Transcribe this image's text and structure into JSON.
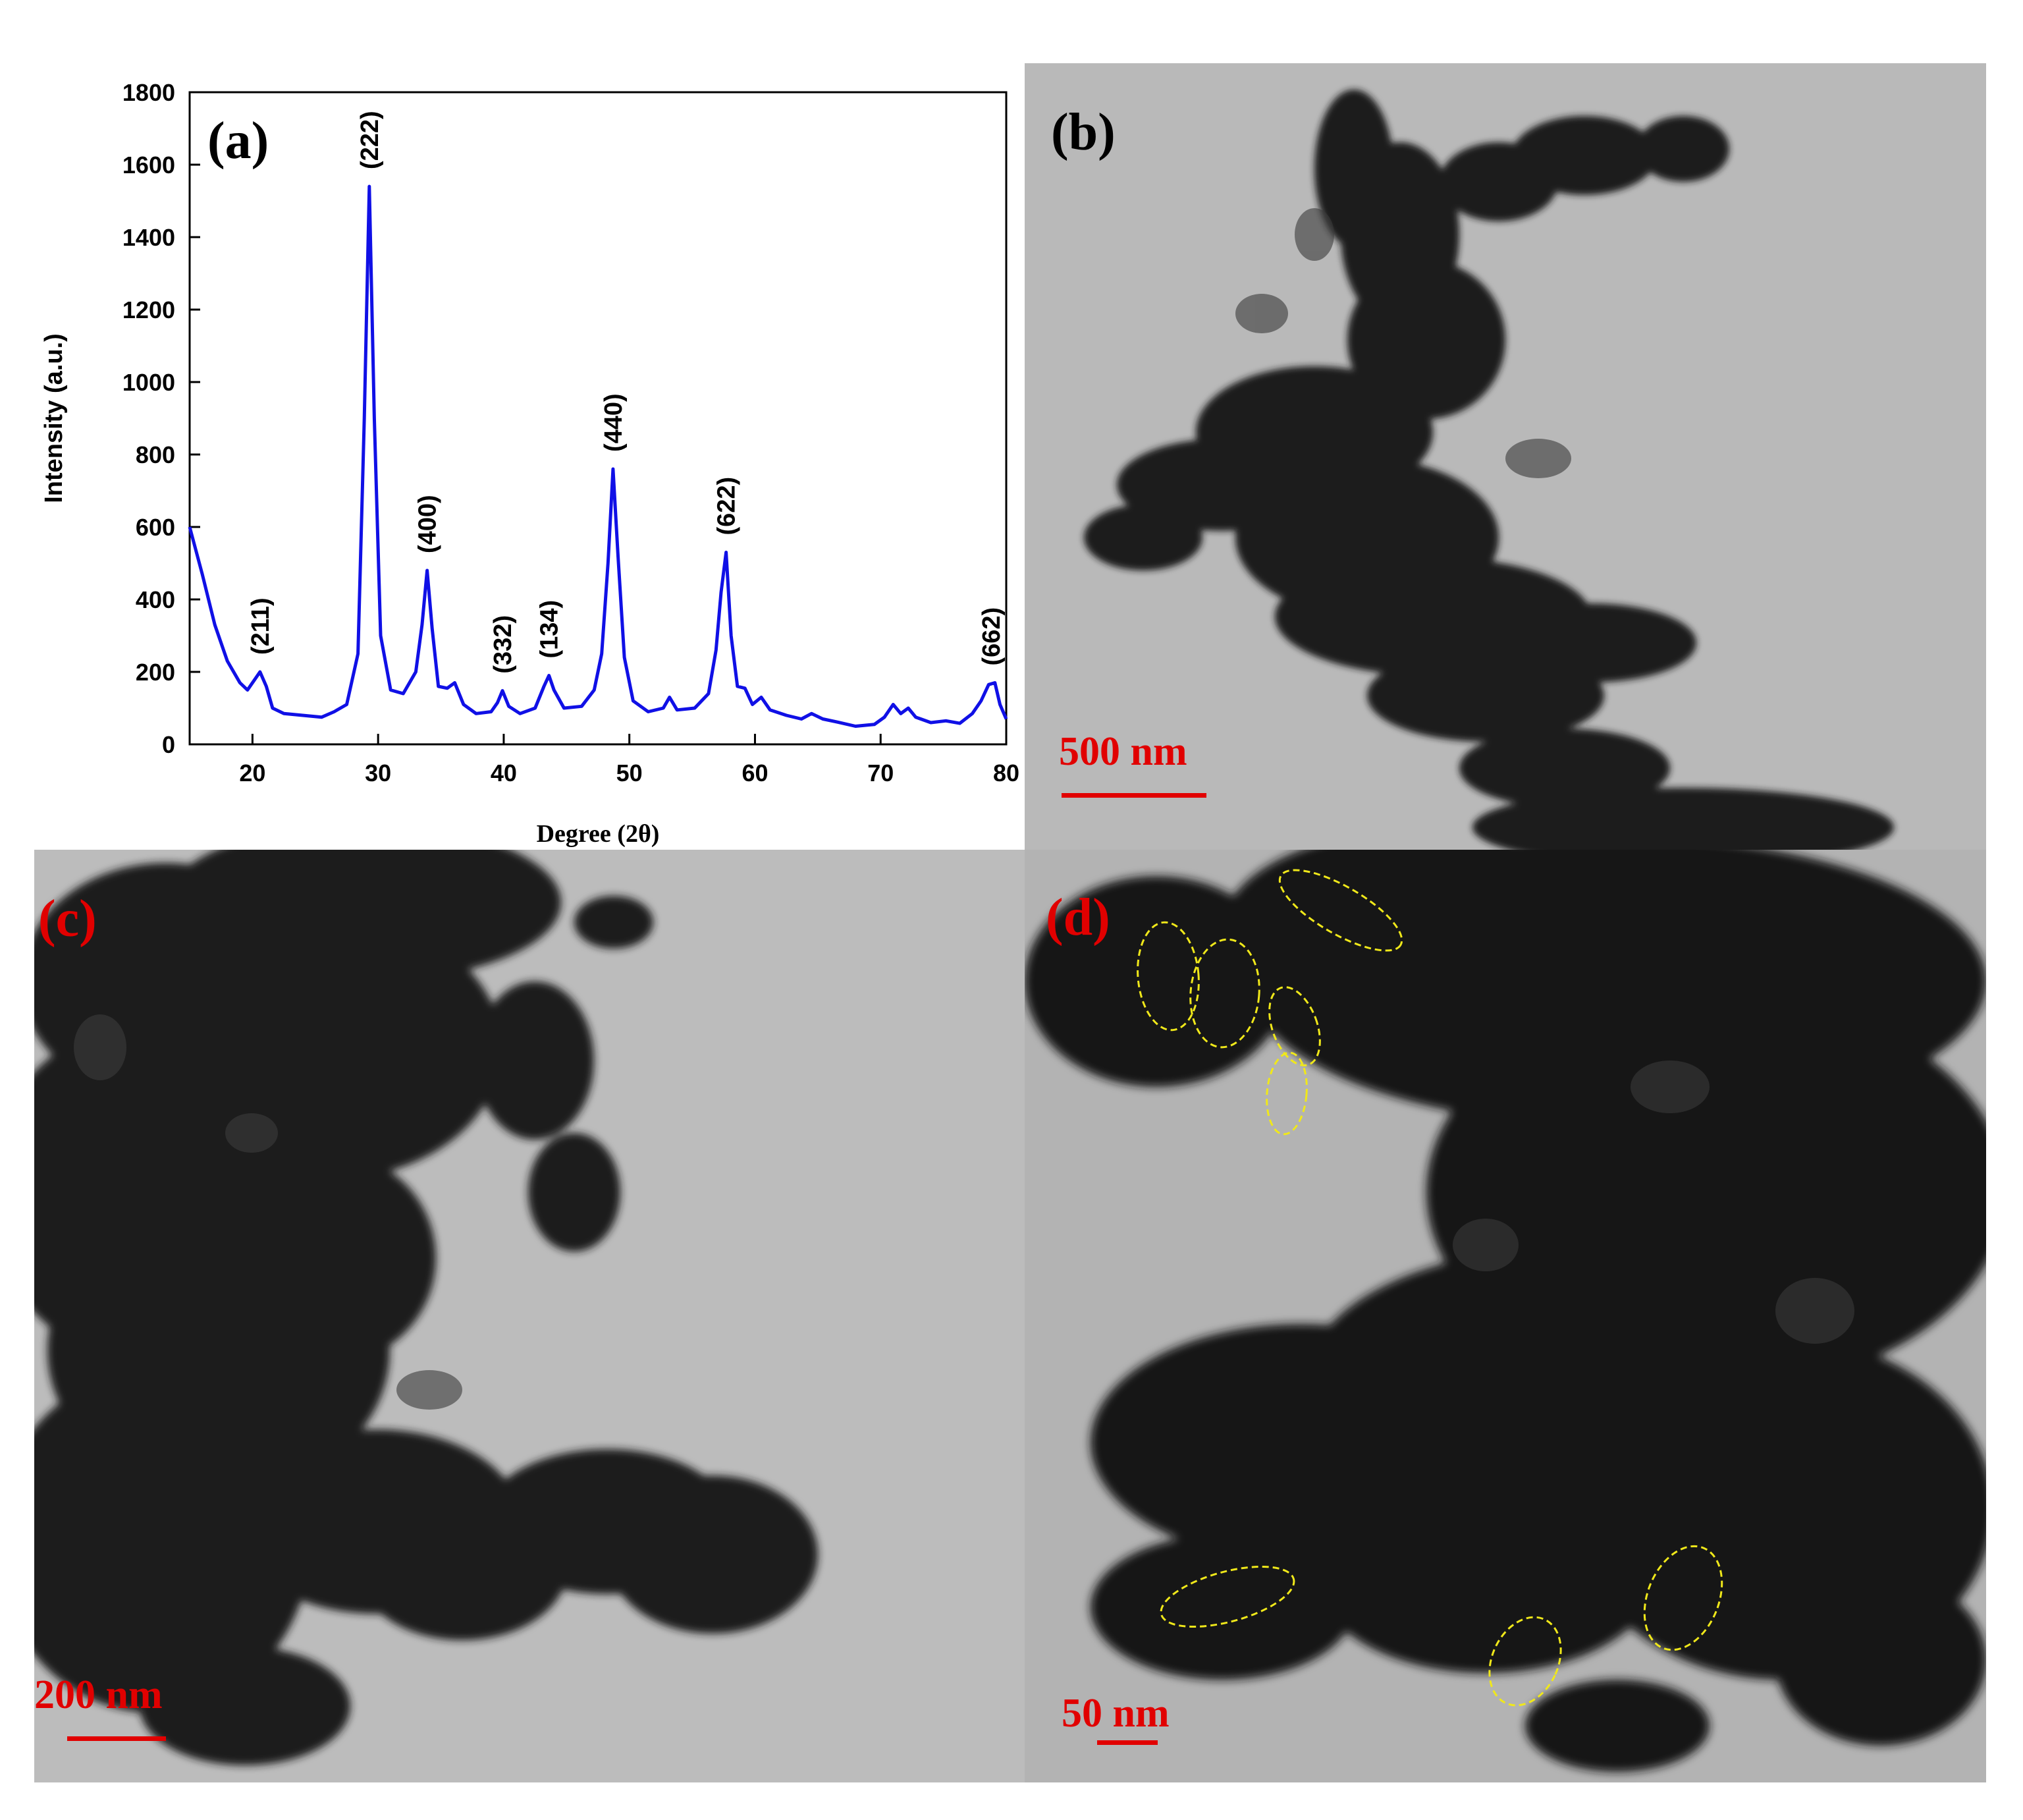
{
  "figure": {
    "panels": [
      {
        "letter": "(a)",
        "kind": "xrd-chart"
      },
      {
        "letter": "(b)",
        "kind": "tem-image",
        "scale_bar": "500 nm"
      },
      {
        "letter": "(c)",
        "kind": "tem-image",
        "scale_bar": "200 nm"
      },
      {
        "letter": "(d)",
        "kind": "tem-image",
        "scale_bar": "50 nm",
        "ellipse_color": "#f0e81a"
      }
    ],
    "colors": {
      "line": "#1010e6",
      "label_red": "#e10000"
    }
  },
  "chart_data": {
    "type": "line",
    "xlabel": "Degree (2θ)",
    "ylabel": "Intensity (a.u.)",
    "xlim": [
      15,
      80
    ],
    "ylim": [
      0,
      1800
    ],
    "x_ticks": [
      20,
      30,
      40,
      50,
      60,
      70,
      80
    ],
    "y_ticks": [
      0,
      200,
      400,
      600,
      800,
      1000,
      1200,
      1400,
      1600,
      1800
    ],
    "series": [
      {
        "color": "#1010e6",
        "points": [
          [
            15,
            600
          ],
          [
            16,
            470
          ],
          [
            17,
            330
          ],
          [
            18,
            230
          ],
          [
            19,
            170
          ],
          [
            19.6,
            150
          ],
          [
            20.1,
            175
          ],
          [
            20.6,
            200
          ],
          [
            21.1,
            160
          ],
          [
            21.6,
            100
          ],
          [
            22.5,
            85
          ],
          [
            24,
            80
          ],
          [
            25.5,
            75
          ],
          [
            26.5,
            90
          ],
          [
            27.5,
            110
          ],
          [
            28.4,
            250
          ],
          [
            28.9,
            900
          ],
          [
            29.3,
            1540
          ],
          [
            29.7,
            900
          ],
          [
            30.2,
            300
          ],
          [
            31,
            150
          ],
          [
            32,
            140
          ],
          [
            33,
            200
          ],
          [
            33.5,
            330
          ],
          [
            33.9,
            480
          ],
          [
            34.3,
            320
          ],
          [
            34.8,
            160
          ],
          [
            35.5,
            155
          ],
          [
            36.1,
            170
          ],
          [
            36.8,
            110
          ],
          [
            37.8,
            85
          ],
          [
            39,
            90
          ],
          [
            39.5,
            115
          ],
          [
            39.9,
            148
          ],
          [
            40.4,
            105
          ],
          [
            41.3,
            85
          ],
          [
            42.5,
            100
          ],
          [
            43.2,
            160
          ],
          [
            43.6,
            190
          ],
          [
            44,
            150
          ],
          [
            44.8,
            100
          ],
          [
            46.2,
            105
          ],
          [
            47.2,
            150
          ],
          [
            47.8,
            250
          ],
          [
            48.3,
            500
          ],
          [
            48.7,
            760
          ],
          [
            49.1,
            520
          ],
          [
            49.6,
            240
          ],
          [
            50.3,
            120
          ],
          [
            51.5,
            90
          ],
          [
            52.7,
            100
          ],
          [
            53.2,
            130
          ],
          [
            53.8,
            95
          ],
          [
            55.2,
            100
          ],
          [
            56.3,
            140
          ],
          [
            56.9,
            260
          ],
          [
            57.3,
            420
          ],
          [
            57.7,
            530
          ],
          [
            58.1,
            300
          ],
          [
            58.6,
            160
          ],
          [
            59.2,
            155
          ],
          [
            59.8,
            110
          ],
          [
            60.5,
            130
          ],
          [
            61.2,
            95
          ],
          [
            62.5,
            80
          ],
          [
            63.7,
            70
          ],
          [
            64.5,
            85
          ],
          [
            65.4,
            70
          ],
          [
            66.5,
            62
          ],
          [
            68,
            50
          ],
          [
            69.5,
            55
          ],
          [
            70.3,
            75
          ],
          [
            71,
            110
          ],
          [
            71.6,
            85
          ],
          [
            72.2,
            100
          ],
          [
            72.8,
            75
          ],
          [
            74,
            60
          ],
          [
            75.2,
            65
          ],
          [
            76.3,
            58
          ],
          [
            77.3,
            85
          ],
          [
            78,
            120
          ],
          [
            78.6,
            165
          ],
          [
            79.1,
            170
          ],
          [
            79.5,
            110
          ],
          [
            80,
            70
          ]
        ]
      }
    ],
    "annotations": [
      {
        "text": "(211)",
        "x": 20.6,
        "y": 200
      },
      {
        "text": "(222)",
        "x": 29.3,
        "y": 1540
      },
      {
        "text": "(400)",
        "x": 33.9,
        "y": 480
      },
      {
        "text": "(332)",
        "x": 39.9,
        "y": 148
      },
      {
        "text": "(134)",
        "x": 43.6,
        "y": 190
      },
      {
        "text": "(440)",
        "x": 48.7,
        "y": 760
      },
      {
        "text": "(622)",
        "x": 57.7,
        "y": 530
      },
      {
        "text": "(662)",
        "x": 78.8,
        "y": 170
      }
    ]
  }
}
